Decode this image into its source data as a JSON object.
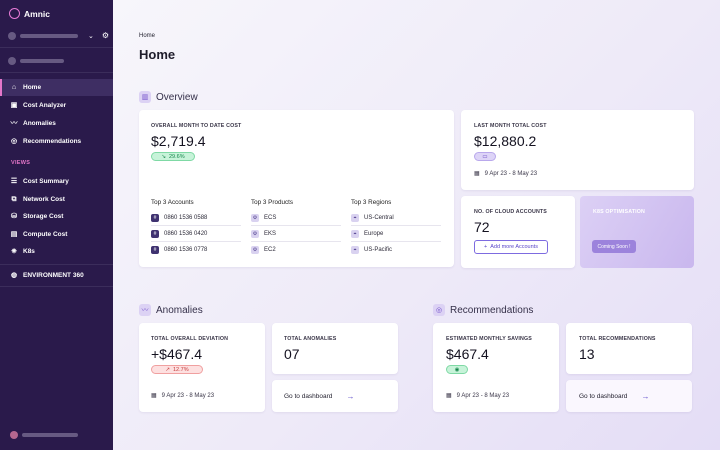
{
  "brand": {
    "name": "Amnic"
  },
  "sidebar": {
    "main_items": [
      {
        "label": "Home",
        "icon": "home-icon"
      },
      {
        "label": "Cost Analyzer",
        "icon": "cost-analyzer-icon"
      },
      {
        "label": "Anomalies",
        "icon": "anomalies-icon"
      },
      {
        "label": "Recommendations",
        "icon": "recommendations-icon"
      }
    ],
    "views_label": "VIEWS",
    "view_items": [
      {
        "label": "Cost Summary"
      },
      {
        "label": "Network Cost"
      },
      {
        "label": "Storage Cost"
      },
      {
        "label": "Compute Cost"
      },
      {
        "label": "K8s"
      }
    ],
    "env_label": "ENVIRONMENT 360"
  },
  "breadcrumb": "Home",
  "page_title": "Home",
  "overview": {
    "title": "Overview",
    "mtd": {
      "label": "OVERALL MONTH TO DATE COST",
      "value": "$2,719.4",
      "badge": "29.6%"
    },
    "accounts": {
      "title": "Top 3 Accounts",
      "items": [
        "0860 1536 0588",
        "0860 1536 0420",
        "0860 1536 0778"
      ]
    },
    "products": {
      "title": "Top 3 Products",
      "items": [
        "ECS",
        "EKS",
        "EC2"
      ]
    },
    "regions": {
      "title": "Top 3 Regions",
      "items": [
        "US-Central",
        "Europe",
        "US-Pacific"
      ]
    },
    "last_month": {
      "label": "LAST MONTH TOTAL COST",
      "value": "$12,880.2",
      "date": "9 Apr 23 - 8 May 23"
    },
    "cloud_accounts": {
      "label": "NO. OF CLOUD ACCOUNTS",
      "value": "72",
      "button": "Add more Accounts"
    },
    "k8s": {
      "label": "K8S OPTIMISATION",
      "button": "Coming Soon !"
    }
  },
  "anomalies": {
    "title": "Anomalies",
    "deviation": {
      "label": "TOTAL OVERALL DEVIATION",
      "value": "+$467.4",
      "badge": "12.7%",
      "date": "9 Apr 23 - 8 May 23"
    },
    "total": {
      "label": "TOTAL ANOMALIES",
      "value": "07"
    },
    "link": "Go to dashboard"
  },
  "recommendations": {
    "title": "Recommendations",
    "savings": {
      "label": "ESTIMATED MONTHLY SAVINGS",
      "value": "$467.4",
      "date": "9 Apr 23 - 8 May 23"
    },
    "total": {
      "label": "TOTAL RECOMMENDATIONS",
      "value": "13"
    },
    "link": "Go to dashboard"
  },
  "colors": {
    "sidebar": "#2a1a4b",
    "accent": "#e476c9",
    "primary": "#6b4ac5"
  }
}
